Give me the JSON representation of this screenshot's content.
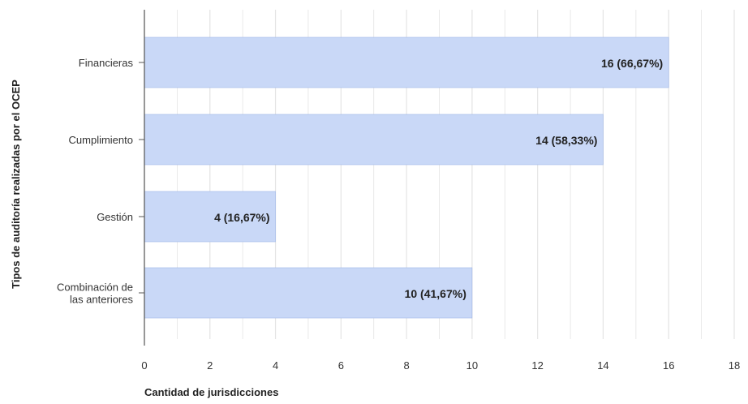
{
  "chart_data": {
    "type": "bar",
    "orientation": "horizontal",
    "title": "",
    "xlabel": "Cantidad de jurisdicciones",
    "ylabel": "Tipos de auditoría realizadas por el OCEP",
    "categories": [
      [
        "Financieras"
      ],
      [
        "Cumplimiento"
      ],
      [
        "Gestión"
      ],
      [
        "Combinación de",
        "las anteriores"
      ]
    ],
    "values": [
      16,
      14,
      4,
      10
    ],
    "data_labels": [
      "16 (66,67%)",
      "14 (58,33%)",
      "4 (16,67%)",
      "10 (41,67%)"
    ],
    "xlim": [
      0,
      18
    ],
    "xticks": [
      0,
      2,
      4,
      6,
      8,
      10,
      12,
      14,
      16,
      18
    ],
    "grid": true,
    "bar_color": "#c9d8f7",
    "bar_stroke_color": "#9fb6e8",
    "grid_color": "#e4e4e4",
    "axis_color": "#555555",
    "text_color": "#333333",
    "label_color": "#222222"
  }
}
